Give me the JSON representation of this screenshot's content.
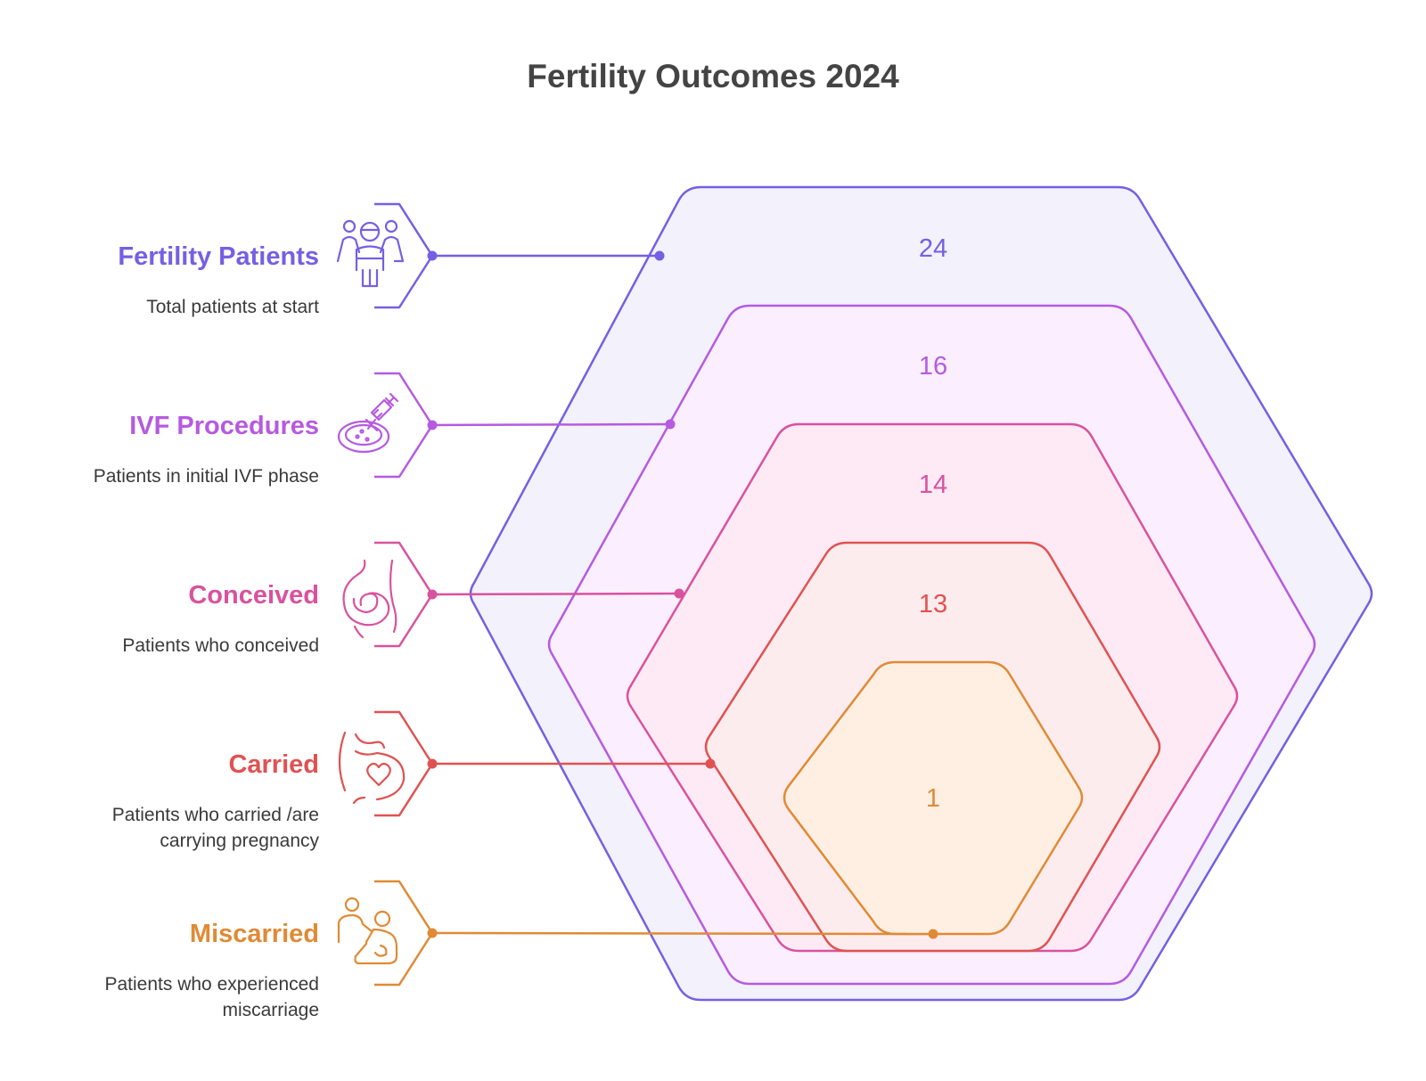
{
  "title": "Fertility Outcomes 2024",
  "stages": [
    {
      "label": "Fertility Patients",
      "description": [
        "Total patients at start"
      ],
      "value": "24",
      "color": "#7460e3",
      "fill": "#f1effc",
      "icon": "family-patients-icon"
    },
    {
      "label": "IVF Procedures",
      "description": [
        "Patients in initial IVF phase"
      ],
      "value": "16",
      "color": "#b65ae0",
      "fill": "#fbefff",
      "icon": "syringe-petri-dish-icon"
    },
    {
      "label": "Conceived",
      "description": [
        "Patients who conceived"
      ],
      "value": "14",
      "color": "#d9529e",
      "fill": "#fde9f3",
      "icon": "pregnant-belly-icon"
    },
    {
      "label": "Carried",
      "description": [
        "Patients who carried /are",
        "carrying pregnancy"
      ],
      "value": "13",
      "color": "#e05252",
      "fill": "#fdeceb",
      "icon": "belly-heart-icon"
    },
    {
      "label": "Miscarried",
      "description": [
        "Patients who experienced",
        "miscarriage"
      ],
      "value": "1",
      "color": "#e08a35",
      "fill": "#fff0e1",
      "icon": "caregiver-patient-icon"
    }
  ]
}
